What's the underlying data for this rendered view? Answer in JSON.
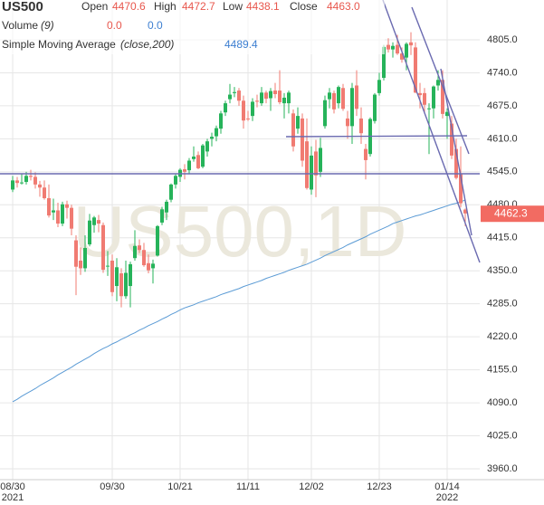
{
  "chart_data": {
    "type": "candlestick",
    "symbol": "US500",
    "watermark": "US500,1D",
    "legend": {
      "open_label": "Open",
      "high_label": "High",
      "low_label": "Low",
      "close_label": "Close",
      "close_value_label": "4463.0"
    },
    "volume": {
      "name": "Volume",
      "params": "(9)",
      "values": [
        0,
        0
      ],
      "value_labels": [
        "0.0",
        "0.0"
      ]
    },
    "categories": [
      "08/30",
      null,
      null,
      null,
      null,
      null,
      null,
      null,
      null,
      null,
      null,
      null,
      null,
      null,
      null,
      null,
      null,
      null,
      null,
      null,
      null,
      null,
      "09/30",
      null,
      null,
      null,
      null,
      null,
      null,
      null,
      null,
      null,
      null,
      null,
      null,
      null,
      null,
      "10/21",
      null,
      null,
      null,
      null,
      null,
      null,
      null,
      null,
      null,
      null,
      null,
      null,
      null,
      null,
      "11/11",
      null,
      null,
      null,
      null,
      null,
      null,
      null,
      null,
      null,
      null,
      null,
      null,
      null,
      "12/02",
      null,
      null,
      null,
      null,
      null,
      null,
      null,
      null,
      null,
      null,
      null,
      null,
      null,
      null,
      "12/23",
      null,
      null,
      null,
      null,
      null,
      null,
      null,
      null,
      null,
      null,
      null,
      null,
      null,
      null,
      "01/14",
      null,
      null,
      null,
      null
    ],
    "years": [
      "2021",
      null,
      null,
      null,
      null,
      null,
      null,
      null,
      null,
      null,
      null,
      null,
      null,
      null,
      null,
      null,
      null,
      null,
      null,
      null,
      null,
      null,
      null,
      null,
      null,
      null,
      null,
      null,
      null,
      null,
      null,
      null,
      null,
      null,
      null,
      null,
      null,
      null,
      null,
      null,
      null,
      null,
      null,
      null,
      null,
      null,
      null,
      null,
      null,
      null,
      null,
      null,
      null,
      null,
      null,
      null,
      null,
      null,
      null,
      null,
      null,
      null,
      null,
      null,
      null,
      null,
      null,
      null,
      null,
      null,
      null,
      null,
      null,
      null,
      null,
      null,
      null,
      null,
      null,
      null,
      null,
      null,
      null,
      null,
      null,
      null,
      null,
      null,
      null,
      null,
      null,
      null,
      null,
      null,
      null,
      null,
      "2022",
      null,
      null,
      null,
      null
    ],
    "open": [
      4510,
      4528,
      4524,
      4525,
      4537,
      4535,
      4520,
      4514,
      4493,
      4465,
      4469,
      4443,
      4481,
      4474,
      4410,
      4370,
      4355,
      4402,
      4440,
      4450,
      4440,
      4360,
      4370,
      4320,
      4345,
      4300,
      4320,
      4375,
      4400,
      4391,
      4365,
      4355,
      4380,
      4445,
      4465,
      4490,
      4520,
      4535,
      4550,
      4548,
      4570,
      4578,
      4555,
      4585,
      4610,
      4615,
      4630,
      4662,
      4688,
      4700,
      4705,
      4685,
      4650,
      4655,
      4685,
      4680,
      4701,
      4690,
      4705,
      4705,
      4680,
      4680,
      4660,
      4630,
      4650,
      4605,
      4510,
      4585,
      4545,
      4635,
      4688,
      4700,
      4680,
      4710,
      4650,
      4635,
      4715,
      4650,
      4590,
      4580,
      4645,
      4700,
      4730,
      4795,
      4786,
      4795,
      4778,
      4770,
      4800,
      4790,
      4700,
      4700,
      4670,
      4670,
      4715,
      4726,
      4655,
      4640,
      4590,
      4540,
      4470.6
    ],
    "high": [
      4537,
      4535,
      4541,
      4545,
      4549,
      4544,
      4527,
      4528,
      4520,
      4492,
      4484,
      4486,
      4488,
      4480,
      4420,
      4396,
      4420,
      4462,
      4458,
      4460,
      4445,
      4389,
      4382,
      4375,
      4355,
      4370,
      4368,
      4430,
      4412,
      4405,
      4382,
      4372,
      4440,
      4476,
      4490,
      4522,
      4540,
      4552,
      4560,
      4572,
      4595,
      4585,
      4600,
      4610,
      4622,
      4636,
      4665,
      4685,
      4718,
      4712,
      4710,
      4695,
      4665,
      4690,
      4697,
      4712,
      4705,
      4710,
      4720,
      4745,
      4700,
      4705,
      4668,
      4672,
      4660,
      4650,
      4595,
      4608,
      4612,
      4695,
      4710,
      4705,
      4715,
      4718,
      4665,
      4720,
      4745,
      4672,
      4600,
      4652,
      4700,
      4740,
      4795,
      4808,
      4800,
      4815,
      4790,
      4800,
      4820,
      4800,
      4720,
      4710,
      4680,
      4715,
      4745,
      4745,
      4670,
      4655,
      4610,
      4595,
      4472.7
    ],
    "low": [
      4505,
      4514,
      4520,
      4520,
      4528,
      4512,
      4496,
      4490,
      4455,
      4450,
      4436,
      4438,
      4453,
      4420,
      4302,
      4342,
      4348,
      4398,
      4425,
      4426,
      4346,
      4340,
      4300,
      4290,
      4278,
      4295,
      4278,
      4370,
      4385,
      4358,
      4345,
      4325,
      4378,
      4440,
      4450,
      4485,
      4512,
      4525,
      4530,
      4540,
      4565,
      4550,
      4552,
      4575,
      4595,
      4605,
      4620,
      4655,
      4680,
      4692,
      4675,
      4630,
      4645,
      4645,
      4672,
      4675,
      4680,
      4665,
      4690,
      4678,
      4650,
      4660,
      4585,
      4620,
      4555,
      4510,
      4500,
      4495,
      4535,
      4630,
      4670,
      4660,
      4670,
      4665,
      4610,
      4600,
      4655,
      4600,
      4530,
      4575,
      4640,
      4695,
      4725,
      4780,
      4770,
      4775,
      4760,
      4745,
      4775,
      4700,
      4670,
      4660,
      4580,
      4650,
      4705,
      4650,
      4610,
      4570,
      4530,
      4475,
      4438.1
    ],
    "close": [
      4528,
      4523,
      4524,
      4537,
      4535,
      4520,
      4514,
      4493,
      4459,
      4469,
      4443,
      4481,
      4474,
      4433,
      4358,
      4355,
      4395,
      4449,
      4455,
      4443,
      4352,
      4360,
      4308,
      4357,
      4300,
      4346,
      4363,
      4399,
      4391,
      4361,
      4351,
      4364,
      4438,
      4471,
      4486,
      4520,
      4537,
      4549,
      4545,
      4567,
      4575,
      4552,
      4597,
      4605,
      4614,
      4631,
      4660,
      4680,
      4697,
      4702,
      4685,
      4646,
      4649,
      4683,
      4683,
      4701,
      4689,
      4704,
      4698,
      4682,
      4691,
      4701,
      4595,
      4655,
      4567,
      4513,
      4577,
      4538,
      4592,
      4686,
      4701,
      4668,
      4712,
      4669,
      4635,
      4710,
      4669,
      4621,
      4568,
      4649,
      4697,
      4726,
      4791,
      4786,
      4793,
      4778,
      4766,
      4797,
      4794,
      4701,
      4696,
      4677,
      4670,
      4713,
      4726,
      4659,
      4663,
      4577,
      4533,
      4483,
      4463
    ],
    "up_color": "#26b35a",
    "down_color": "#f07b72",
    "sma": {
      "name": "Simple Moving Average",
      "params": "(close,200)",
      "color": "#5b9bd5",
      "values": [
        4092,
        4097,
        4103,
        4108,
        4113,
        4118,
        4124,
        4129,
        4134,
        4139,
        4145,
        4150,
        4155,
        4160,
        4166,
        4171,
        4176,
        4181,
        4187,
        4192,
        4197,
        4201,
        4206,
        4210,
        4215,
        4219,
        4224,
        4228,
        4233,
        4237,
        4242,
        4246,
        4250,
        4255,
        4259,
        4264,
        4268,
        4273,
        4277,
        4280,
        4283,
        4287,
        4290,
        4293,
        4296,
        4299,
        4303,
        4306,
        4309,
        4312,
        4315,
        4319,
        4322,
        4325,
        4328,
        4331,
        4335,
        4338,
        4341,
        4344,
        4347,
        4351,
        4354,
        4357,
        4360,
        4363,
        4367,
        4371,
        4375,
        4380,
        4384,
        4388,
        4392,
        4396,
        4401,
        4405,
        4409,
        4413,
        4417,
        4422,
        4426,
        4430,
        4434,
        4438,
        4443,
        4446,
        4449,
        4452,
        4455,
        4458,
        4460,
        4463,
        4466,
        4469,
        4472,
        4475,
        4478,
        4481,
        4483,
        4486,
        4489.4
      ]
    },
    "last_price": 4462.3,
    "last_price_color": "#f26b62",
    "ylim": [
      3938.6,
      4883.4
    ],
    "yticks": [
      {
        "value": 4805,
        "label": "4805.0"
      },
      {
        "value": 4740,
        "label": "4740.0"
      },
      {
        "value": 4675,
        "label": "4675.0"
      },
      {
        "value": 4610,
        "label": "4610.0"
      },
      {
        "value": 4545,
        "label": "4545.0"
      },
      {
        "value": 4480,
        "label": "4480.0"
      },
      {
        "value": 4415,
        "label": "4415.0"
      },
      {
        "value": 4350,
        "label": "4350.0"
      },
      {
        "value": 4285,
        "label": "4285.0"
      },
      {
        "value": 4220,
        "label": "4220.0"
      },
      {
        "value": 4155,
        "label": "4155.0"
      },
      {
        "value": 4090,
        "label": "4090.0"
      },
      {
        "value": 4025,
        "label": "4025.0"
      },
      {
        "value": 3960,
        "label": "3960.0"
      }
    ],
    "grid": true
  }
}
